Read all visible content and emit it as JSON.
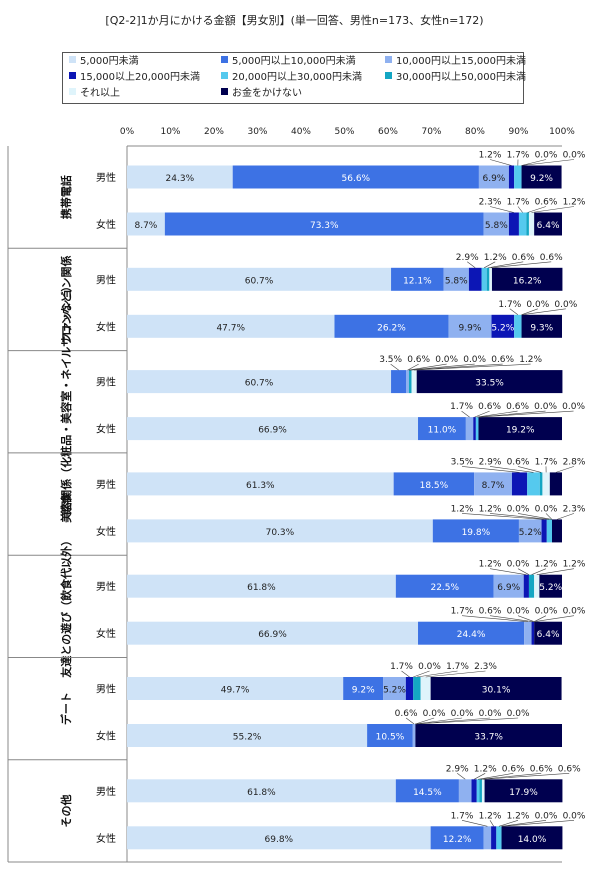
{
  "title": "[Q2-2]1か月にかける金額【男女別】(単一回答、男性n=173、女性n=172)",
  "legend": [
    {
      "label": "5,000円未満",
      "color": "#cfe3f7"
    },
    {
      "label": "5,000円以上10,000円未満",
      "color": "#3d72e4"
    },
    {
      "label": "10,000円以上15,000円未満",
      "color": "#8fb1f0"
    },
    {
      "label": "15,000以上20,000円未満",
      "color": "#0c16b5"
    },
    {
      "label": "20,000円以上30,000円未満",
      "color": "#55c9ee"
    },
    {
      "label": "30,000円以上50,000円未満",
      "color": "#14a6c3"
    },
    {
      "label": "それ以上",
      "color": "#dff4fb"
    },
    {
      "label": "お金をかけない",
      "color": "#00004f"
    }
  ],
  "chart_data": {
    "type": "bar",
    "orientation": "horizontal",
    "stacked": true,
    "title": "[Q2-2]1か月にかける金額【男女別】(単一回答、男性n=173、女性n=172)",
    "xlim": [
      0,
      100
    ],
    "x_ticks": [
      "0%",
      "10%",
      "20%",
      "30%",
      "40%",
      "50%",
      "60%",
      "70%",
      "80%",
      "90%",
      "100%"
    ],
    "series_names": [
      "5,000円未満",
      "5,000円以上10,000円未満",
      "10,000円以上15,000円未満",
      "15,000以上20,000円未満",
      "20,000円以上30,000円未満",
      "30,000円以上50,000円未満",
      "それ以上",
      "お金をかけない"
    ],
    "groups": [
      {
        "label": "携帯電話",
        "rows": [
          {
            "label": "男性",
            "values": [
              24.3,
              56.6,
              6.9,
              1.2,
              1.7,
              0.0,
              0.0,
              9.2
            ]
          },
          {
            "label": "女性",
            "values": [
              8.7,
              73.3,
              5.8,
              2.3,
              1.7,
              0.6,
              1.2,
              6.4
            ]
          }
        ]
      },
      {
        "label": "ファッション関係",
        "rows": [
          {
            "label": "男性",
            "values": [
              60.7,
              12.1,
              5.8,
              2.9,
              1.2,
              0.6,
              0.6,
              16.2
            ]
          },
          {
            "label": "女性",
            "values": [
              47.7,
              26.2,
              9.9,
              5.2,
              1.7,
              0.0,
              0.0,
              9.3
            ]
          }
        ]
      },
      {
        "label": "美容関係（化粧品・美容室・ネイルサロンなど）",
        "rows": [
          {
            "label": "男性",
            "values": [
              60.7,
              3.5,
              0.6,
              0.0,
              0.0,
              0.6,
              1.2,
              33.5
            ]
          },
          {
            "label": "女性",
            "values": [
              66.9,
              11.0,
              1.7,
              0.6,
              0.6,
              0.0,
              0.0,
              19.2
            ]
          }
        ]
      },
      {
        "label": "飲食",
        "rows": [
          {
            "label": "男性",
            "values": [
              61.3,
              18.5,
              8.7,
              3.5,
              2.9,
              0.6,
              1.7,
              2.8
            ]
          },
          {
            "label": "女性",
            "values": [
              70.3,
              19.8,
              5.2,
              1.2,
              1.2,
              0.0,
              0.0,
              2.3
            ]
          }
        ]
      },
      {
        "label": "友達との遊び（飲食代以外）",
        "rows": [
          {
            "label": "男性",
            "values": [
              61.8,
              22.5,
              6.9,
              1.2,
              0.0,
              1.2,
              1.2,
              5.2
            ]
          },
          {
            "label": "女性",
            "values": [
              66.9,
              24.4,
              1.7,
              0.6,
              0.0,
              0.0,
              0.0,
              6.4
            ]
          }
        ]
      },
      {
        "label": "デート",
        "rows": [
          {
            "label": "男性",
            "values": [
              49.7,
              9.2,
              5.2,
              1.7,
              0.0,
              1.7,
              2.3,
              30.1
            ]
          },
          {
            "label": "女性",
            "values": [
              55.2,
              10.5,
              0.6,
              0.0,
              0.0,
              0.0,
              0.0,
              33.7
            ]
          }
        ]
      },
      {
        "label": "その他",
        "rows": [
          {
            "label": "男性",
            "values": [
              61.8,
              14.5,
              2.9,
              1.2,
              0.6,
              0.6,
              0.6,
              17.9
            ]
          },
          {
            "label": "女性",
            "values": [
              69.8,
              12.2,
              1.7,
              1.2,
              1.2,
              0.0,
              0.0,
              14.0
            ]
          }
        ]
      }
    ]
  }
}
